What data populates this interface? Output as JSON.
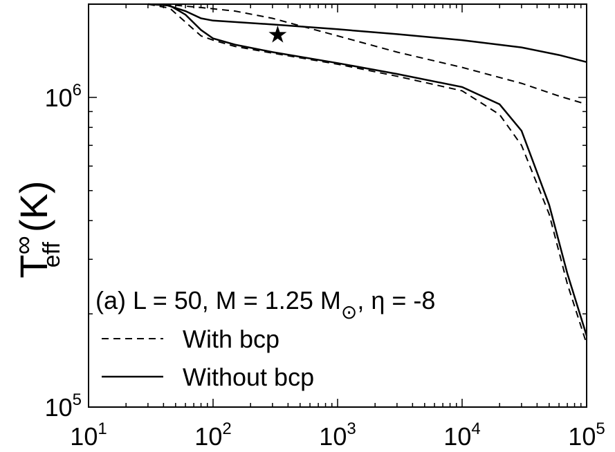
{
  "chart_data": {
    "type": "line",
    "xscale": "log",
    "yscale": "log",
    "xlim": [
      10,
      100000
    ],
    "ylim": [
      100000,
      2000000
    ],
    "x_tick_labels": [
      {
        "value": 10,
        "base": "10",
        "exp": "1"
      },
      {
        "value": 100,
        "base": "10",
        "exp": "2"
      },
      {
        "value": 1000,
        "base": "10",
        "exp": "3"
      },
      {
        "value": 10000,
        "base": "10",
        "exp": "4"
      },
      {
        "value": 100000,
        "base": "10",
        "exp": "5"
      }
    ],
    "y_tick_labels": [
      {
        "value": 100000,
        "base": "10",
        "exp": "5"
      },
      {
        "value": 1000000,
        "base": "10",
        "exp": "6"
      }
    ],
    "ylabel": {
      "main": "T",
      "sup": "∞",
      "sub": "eff",
      "unit": "(K)"
    },
    "xlabel": "",
    "grid": false,
    "annotation": {
      "prefix": "(a) L = 50, M = 1.25 M",
      "sub": "⊙",
      "suffix": ", η = -8"
    },
    "marker": {
      "symbol": "★",
      "x": 330,
      "y": 1600000
    },
    "legend": {
      "placement": "bottom-left",
      "entries": [
        {
          "label": "With bcp",
          "style": "dashed"
        },
        {
          "label": "Without bcp",
          "style": "solid"
        }
      ]
    },
    "series": [
      {
        "group": "Without bcp",
        "style": "solid",
        "points": [
          [
            40,
            2000000
          ],
          [
            60,
            1900000
          ],
          [
            80,
            1800000
          ],
          [
            100,
            1770000
          ],
          [
            300,
            1720000
          ],
          [
            1000,
            1660000
          ],
          [
            3000,
            1600000
          ],
          [
            10000,
            1530000
          ],
          [
            30000,
            1450000
          ],
          [
            60000,
            1370000
          ],
          [
            100000,
            1300000
          ]
        ]
      },
      {
        "group": "With bcp",
        "style": "dashed",
        "points": [
          [
            40,
            2000000
          ],
          [
            80,
            1950000
          ],
          [
            150,
            1900000
          ],
          [
            300,
            1800000
          ],
          [
            1000,
            1580000
          ],
          [
            3000,
            1400000
          ],
          [
            10000,
            1250000
          ],
          [
            30000,
            1110000
          ],
          [
            60000,
            1010000
          ],
          [
            100000,
            950000
          ]
        ]
      },
      {
        "group": "Without bcp",
        "style": "solid",
        "points": [
          [
            30,
            2000000
          ],
          [
            45,
            1980000
          ],
          [
            60,
            1850000
          ],
          [
            80,
            1650000
          ],
          [
            100,
            1550000
          ],
          [
            150,
            1480000
          ],
          [
            300,
            1400000
          ],
          [
            1000,
            1290000
          ],
          [
            3000,
            1190000
          ],
          [
            10000,
            1080000
          ],
          [
            20000,
            950000
          ],
          [
            30000,
            780000
          ],
          [
            50000,
            450000
          ],
          [
            70000,
            270000
          ],
          [
            100000,
            170000
          ]
        ]
      },
      {
        "group": "With bcp",
        "style": "dashed",
        "points": [
          [
            30,
            2000000
          ],
          [
            45,
            1940000
          ],
          [
            60,
            1750000
          ],
          [
            80,
            1580000
          ],
          [
            100,
            1530000
          ],
          [
            150,
            1460000
          ],
          [
            300,
            1390000
          ],
          [
            1000,
            1280000
          ],
          [
            3000,
            1170000
          ],
          [
            10000,
            1050000
          ],
          [
            20000,
            880000
          ],
          [
            30000,
            700000
          ],
          [
            50000,
            420000
          ],
          [
            70000,
            250000
          ],
          [
            100000,
            160000
          ]
        ]
      }
    ]
  }
}
